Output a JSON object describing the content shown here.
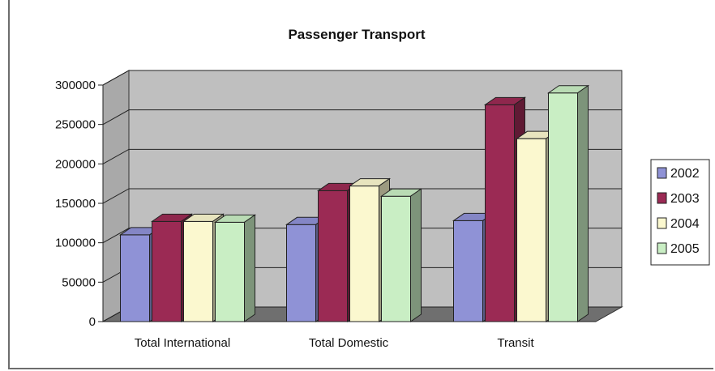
{
  "chart_data": {
    "type": "bar",
    "title": "Passenger Transport",
    "categories": [
      "Total International",
      "Total Domestic",
      "Transit"
    ],
    "series": [
      {
        "name": "2002",
        "values": [
          110000,
          123000,
          128000
        ],
        "color": "#8f92d6"
      },
      {
        "name": "2003",
        "values": [
          127000,
          166000,
          275000
        ],
        "color": "#9b2a54"
      },
      {
        "name": "2004",
        "values": [
          127000,
          172000,
          232000
        ],
        "color": "#fbf8cf"
      },
      {
        "name": "2005",
        "values": [
          126000,
          159000,
          290000
        ],
        "color": "#c9eec4"
      }
    ],
    "yticks": [
      "300000",
      "250000",
      "200000",
      "150000",
      "100000",
      "50000",
      "0"
    ],
    "ylim": [
      0,
      300000
    ],
    "legend_position": "right",
    "grid": true,
    "style": "3d"
  }
}
